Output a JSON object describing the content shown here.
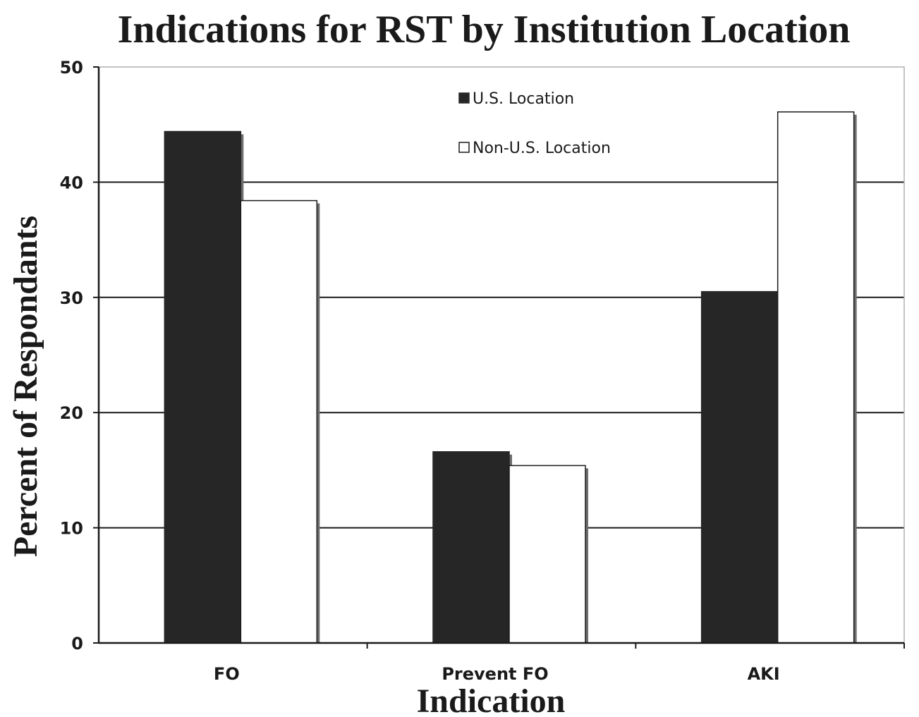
{
  "chart_data": {
    "type": "bar",
    "title": "Indications for RST by Institution Location",
    "xlabel": "Indication",
    "ylabel": "Percent of Respondants",
    "categories": [
      "FO",
      "Prevent FO",
      "AKI"
    ],
    "series": [
      {
        "name": "U.S. Location",
        "values": [
          44.4,
          16.6,
          30.5
        ],
        "color": "#262626"
      },
      {
        "name": "Non-U.S. Location",
        "values": [
          38.4,
          15.4,
          46.1
        ],
        "color": "#ffffff"
      }
    ],
    "ylim": [
      0,
      50
    ],
    "yticks": [
      "0",
      "10",
      "20",
      "30",
      "40",
      "50"
    ],
    "grid": true,
    "legend_position": "top-center"
  }
}
